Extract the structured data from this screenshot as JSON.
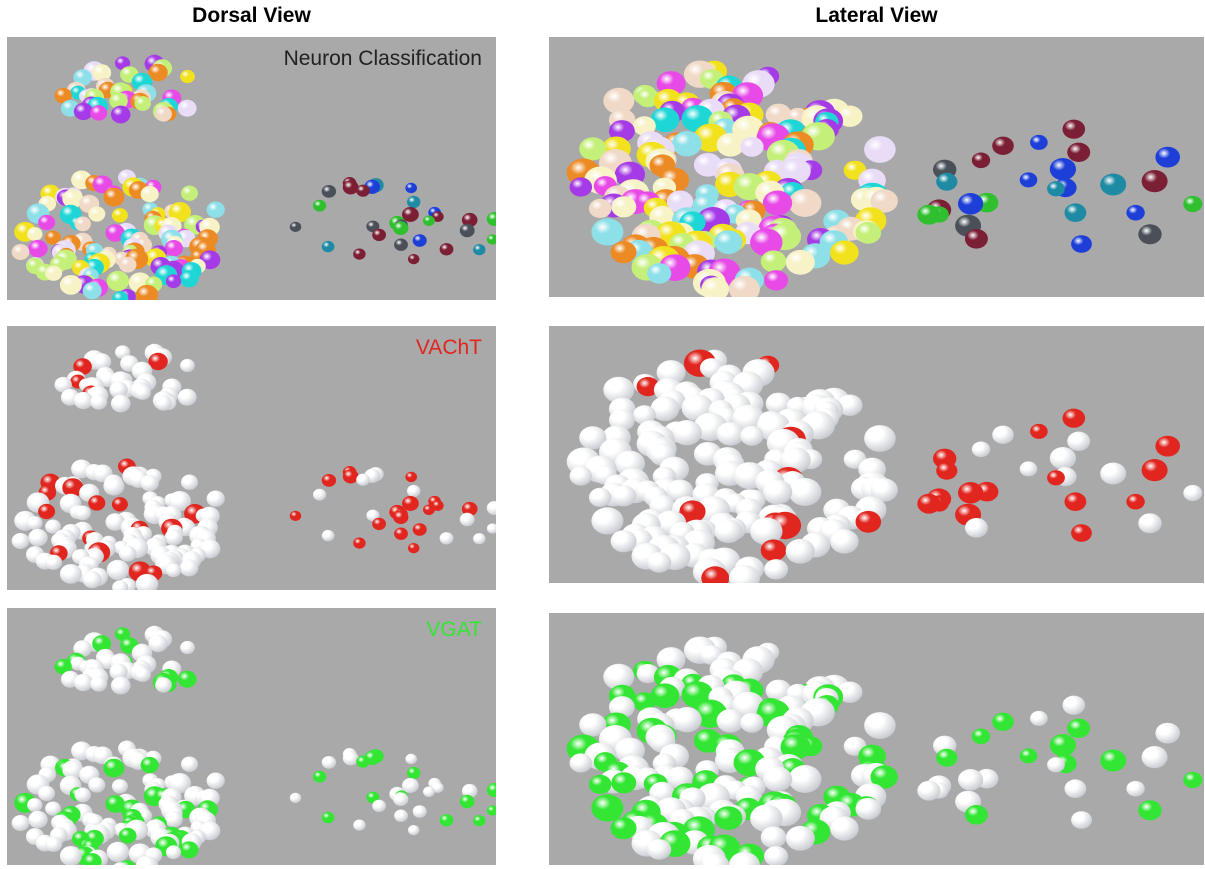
{
  "titles": {
    "dorsal": "Dorsal View",
    "lateral": "Lateral View"
  },
  "panels": [
    {
      "label": "Neuron Classification"
    },
    {
      "label": "VAChT"
    },
    {
      "label": "VGAT"
    }
  ]
}
